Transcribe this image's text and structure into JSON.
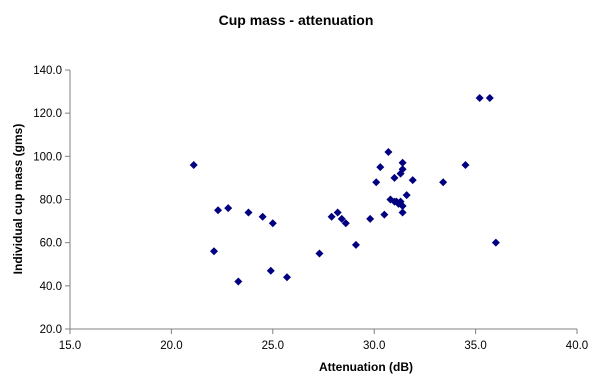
{
  "chart_data": {
    "type": "scatter",
    "title": "Cup mass - attenuation",
    "xlabel": "Attenuation (dB)",
    "ylabel": "Individual cup mass (gms)",
    "xlim": [
      15.0,
      40.0
    ],
    "ylim": [
      20.0,
      140.0
    ],
    "x_ticks": [
      "15.0",
      "20.0",
      "25.0",
      "30.0",
      "35.0",
      "40.0"
    ],
    "y_ticks": [
      "20.0",
      "40.0",
      "60.0",
      "80.0",
      "100.0",
      "120.0",
      "140.0"
    ],
    "x_tick_values": [
      15,
      20,
      25,
      30,
      35,
      40
    ],
    "y_tick_values": [
      20,
      40,
      60,
      80,
      100,
      120,
      140
    ],
    "grid": false,
    "legend": "none",
    "marker": "diamond",
    "marker_color": "#000080",
    "series": [
      {
        "points": [
          [
            21.1,
            96
          ],
          [
            22.1,
            56
          ],
          [
            22.3,
            75
          ],
          [
            22.8,
            76
          ],
          [
            23.3,
            42
          ],
          [
            23.8,
            74
          ],
          [
            24.5,
            72
          ],
          [
            24.9,
            47
          ],
          [
            25.0,
            69
          ],
          [
            25.7,
            44
          ],
          [
            27.3,
            55
          ],
          [
            27.9,
            72
          ],
          [
            28.2,
            74
          ],
          [
            28.4,
            71
          ],
          [
            28.6,
            69
          ],
          [
            29.1,
            59
          ],
          [
            29.8,
            71
          ],
          [
            30.1,
            88
          ],
          [
            30.3,
            95
          ],
          [
            30.5,
            73
          ],
          [
            30.7,
            102
          ],
          [
            30.8,
            80
          ],
          [
            31.0,
            90
          ],
          [
            31.0,
            79
          ],
          [
            31.1,
            79
          ],
          [
            31.2,
            78
          ],
          [
            31.3,
            79
          ],
          [
            31.3,
            92
          ],
          [
            31.4,
            97
          ],
          [
            31.4,
            94
          ],
          [
            31.4,
            74
          ],
          [
            31.4,
            77
          ],
          [
            31.6,
            82
          ],
          [
            31.9,
            89
          ],
          [
            33.4,
            88
          ],
          [
            34.5,
            96
          ],
          [
            35.2,
            127
          ],
          [
            35.7,
            127
          ],
          [
            36.0,
            60
          ]
        ]
      }
    ]
  }
}
